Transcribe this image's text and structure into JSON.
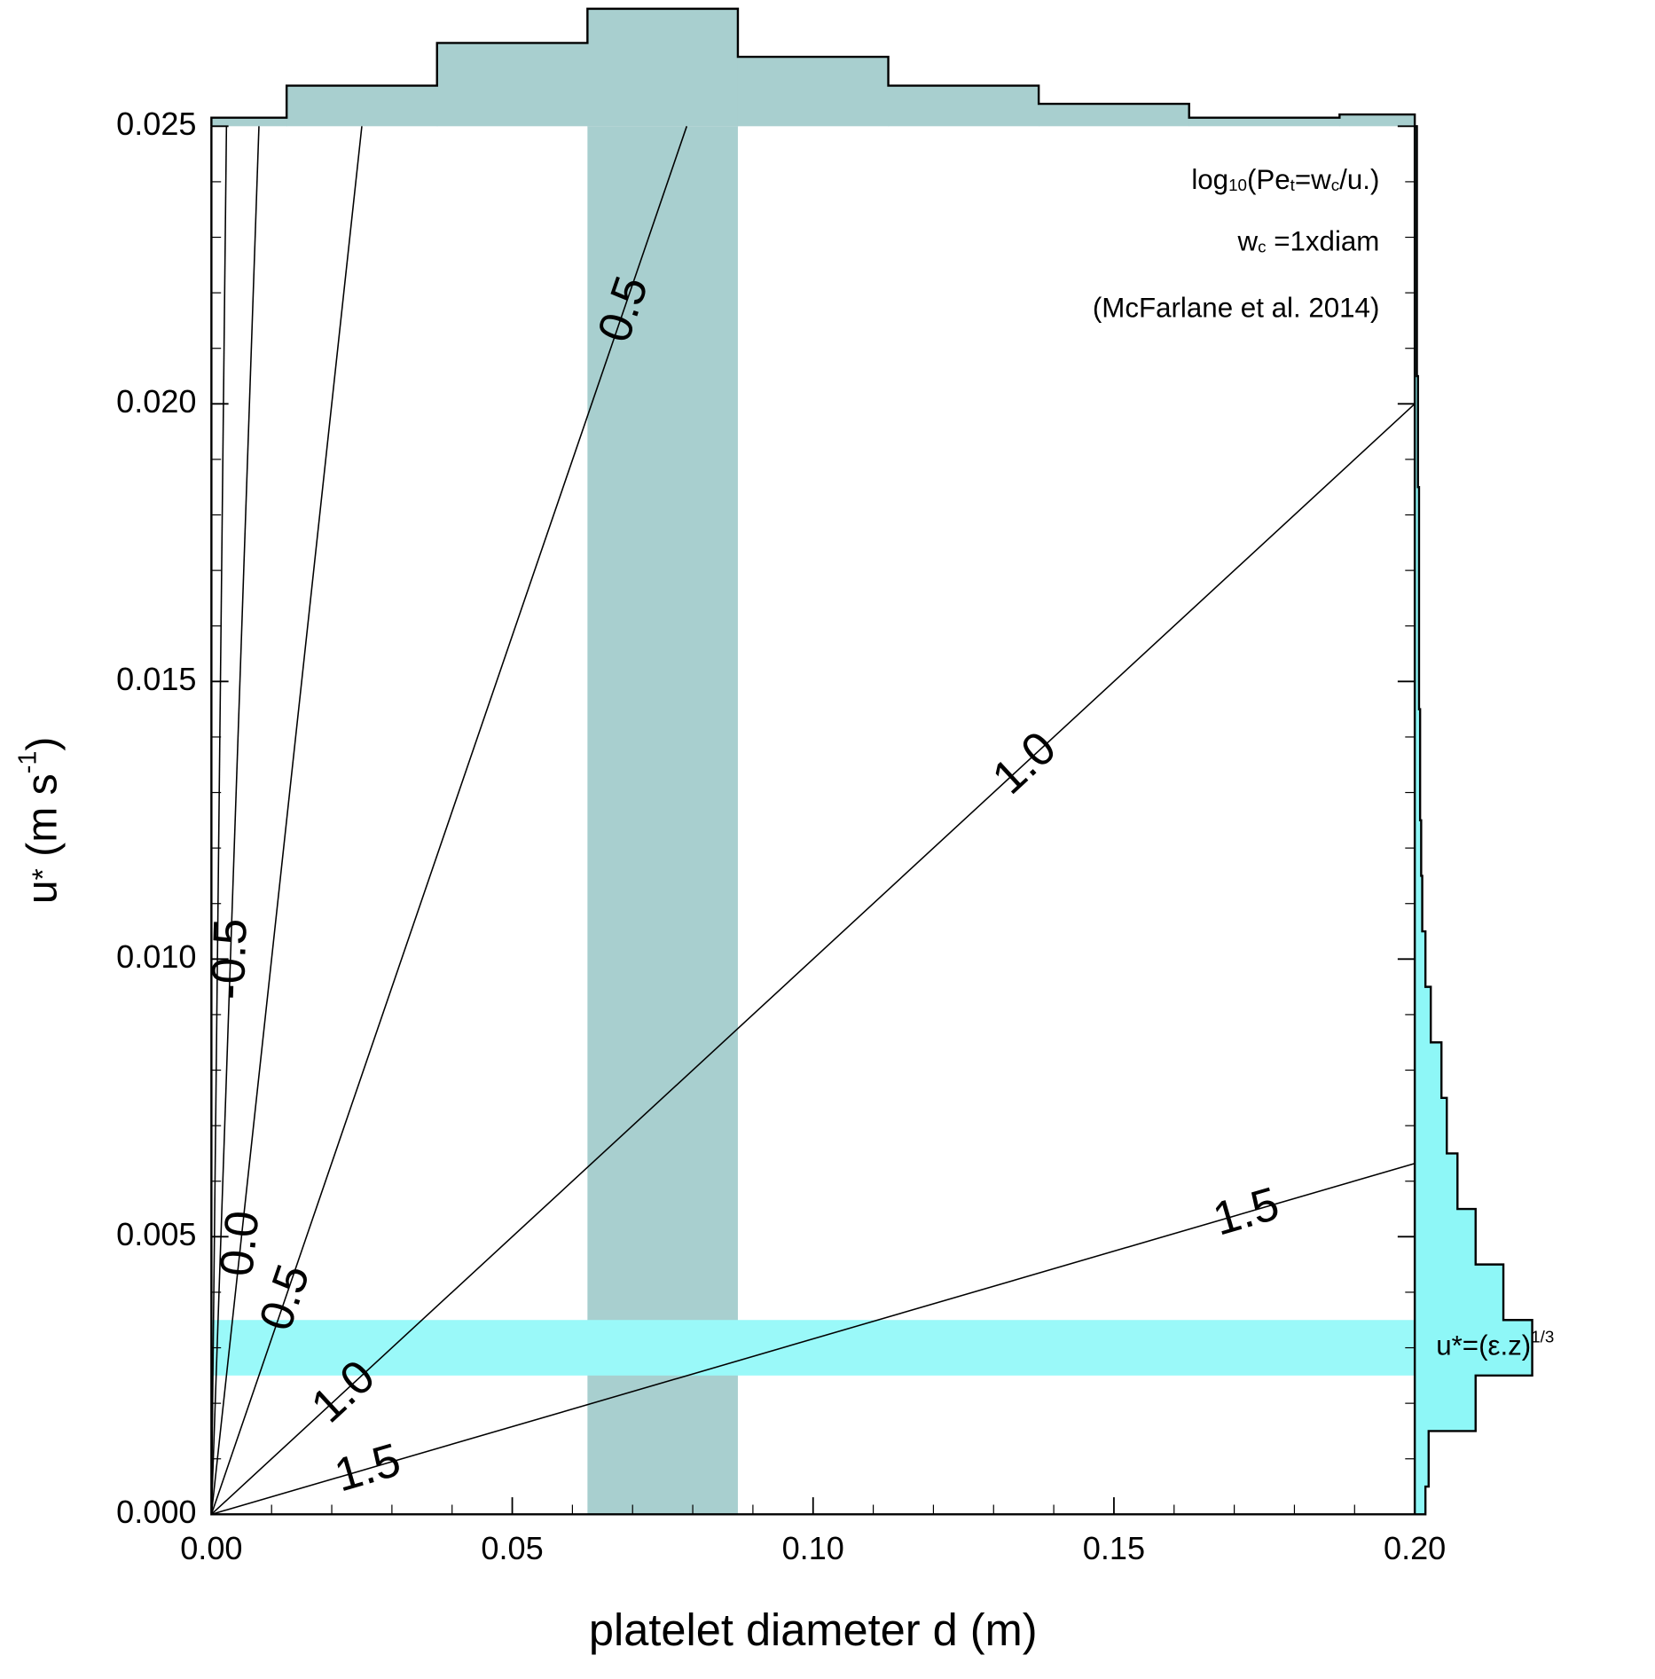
{
  "chart_data": {
    "type": "contour",
    "xlabel": [
      {
        "text": "platelet diameter d (m)"
      }
    ],
    "ylabel": [
      {
        "text": "u"
      },
      {
        "text": "*",
        "style": "small"
      },
      {
        "text": " (m s"
      },
      {
        "text": "-1",
        "style": "sup"
      },
      {
        "text": ")"
      }
    ],
    "xlim": [
      0,
      0.2
    ],
    "ylim": [
      0,
      0.025
    ],
    "xticks": [
      {
        "value": 0,
        "label": "0.00"
      },
      {
        "value": 0.05,
        "label": "0.05"
      },
      {
        "value": 0.1,
        "label": "0.10"
      },
      {
        "value": 0.15,
        "label": "0.15"
      },
      {
        "value": 0.2,
        "label": "0.20"
      }
    ],
    "yticks": [
      {
        "value": 0,
        "label": "0.000"
      },
      {
        "value": 0.005,
        "label": "0.005"
      },
      {
        "value": 0.01,
        "label": "0.010"
      },
      {
        "value": 0.015,
        "label": "0.015"
      },
      {
        "value": 0.02,
        "label": "0.020"
      },
      {
        "value": 0.025,
        "label": "0.025"
      }
    ],
    "xminorticks": [
      0.01,
      0.02,
      0.03,
      0.04,
      0.06,
      0.07,
      0.08,
      0.09,
      0.11,
      0.12,
      0.13,
      0.14,
      0.16,
      0.17,
      0.18,
      0.19
    ],
    "yminorticks": [
      0.001,
      0.002,
      0.003,
      0.004,
      0.006,
      0.007,
      0.008,
      0.009,
      0.011,
      0.012,
      0.013,
      0.014,
      0.016,
      0.017,
      0.018,
      0.019,
      0.021,
      0.022,
      0.023,
      0.024
    ],
    "annotations": [
      [
        {
          "text": "log"
        },
        {
          "text": "10",
          "style": "sub"
        },
        {
          "text": "(Pe"
        },
        {
          "text": "t",
          "style": "sub"
        },
        {
          "text": "=w"
        },
        {
          "text": "c",
          "style": "sub"
        },
        {
          "text": "/u.)"
        }
      ],
      [
        {
          "text": "w"
        },
        {
          "text": "c",
          "style": "sub"
        },
        {
          "text": " =1xdiam"
        }
      ],
      [
        {
          "text": "(McFarlane et al. 2014)"
        }
      ]
    ],
    "contours": [
      {
        "x": [
          0,
          0.0025
        ],
        "y": [
          0,
          0.025
        ]
      },
      {
        "label": "-0.5",
        "x": [
          0,
          0.0079
        ],
        "y": [
          0,
          0.025
        ]
      },
      {
        "label": "0.0",
        "x": [
          0,
          0.025
        ],
        "y": [
          0,
          0.025
        ]
      },
      {
        "label": "0.5",
        "x": [
          0,
          0.079
        ],
        "y": [
          0,
          0.025
        ]
      },
      {
        "label": "1.0",
        "x": [
          0,
          0.2
        ],
        "y": [
          0,
          0.02
        ]
      },
      {
        "label": "1.5",
        "x": [
          0,
          0.2
        ],
        "y": [
          0,
          0.00632
        ]
      }
    ],
    "d_band": {
      "range": [
        0.0625,
        0.0875
      ],
      "color": "#a8cfcf"
    },
    "u_band": {
      "range": [
        0.0025,
        0.0035
      ],
      "color": "#9af9f9",
      "label": [
        {
          "text": "u*=(ε.z)"
        },
        {
          "text": "1/3",
          "style": "sup"
        }
      ]
    },
    "d_histogram": {
      "bins": [
        0,
        0.0125,
        0.0375,
        0.0625,
        0.0875,
        0.1125,
        0.1375,
        0.1625,
        0.1875,
        0.2
      ],
      "counts": [
        8,
        38,
        78,
        110,
        65,
        38,
        21,
        8,
        11
      ],
      "color": "#a8cfcf"
    },
    "u_histogram": {
      "bins": [
        0,
        0.0005,
        0.0015,
        0.0025,
        0.0035,
        0.0045,
        0.0055,
        0.0065,
        0.0075,
        0.0085,
        0.0095,
        0.0105,
        0.0115,
        0.0125,
        0.0135,
        0.0145,
        0.0155,
        0.0165,
        0.0175,
        0.0185,
        0.0195,
        0.0205,
        0.0215,
        0.0225,
        0.0235,
        0.025
      ],
      "counts": [
        10,
        13,
        57,
        110,
        83,
        57,
        40,
        30,
        25,
        15,
        10,
        7,
        6,
        5,
        5,
        4,
        4,
        4,
        4,
        3,
        3,
        2,
        2,
        2,
        2
      ],
      "color": "#8ef7f7"
    }
  }
}
